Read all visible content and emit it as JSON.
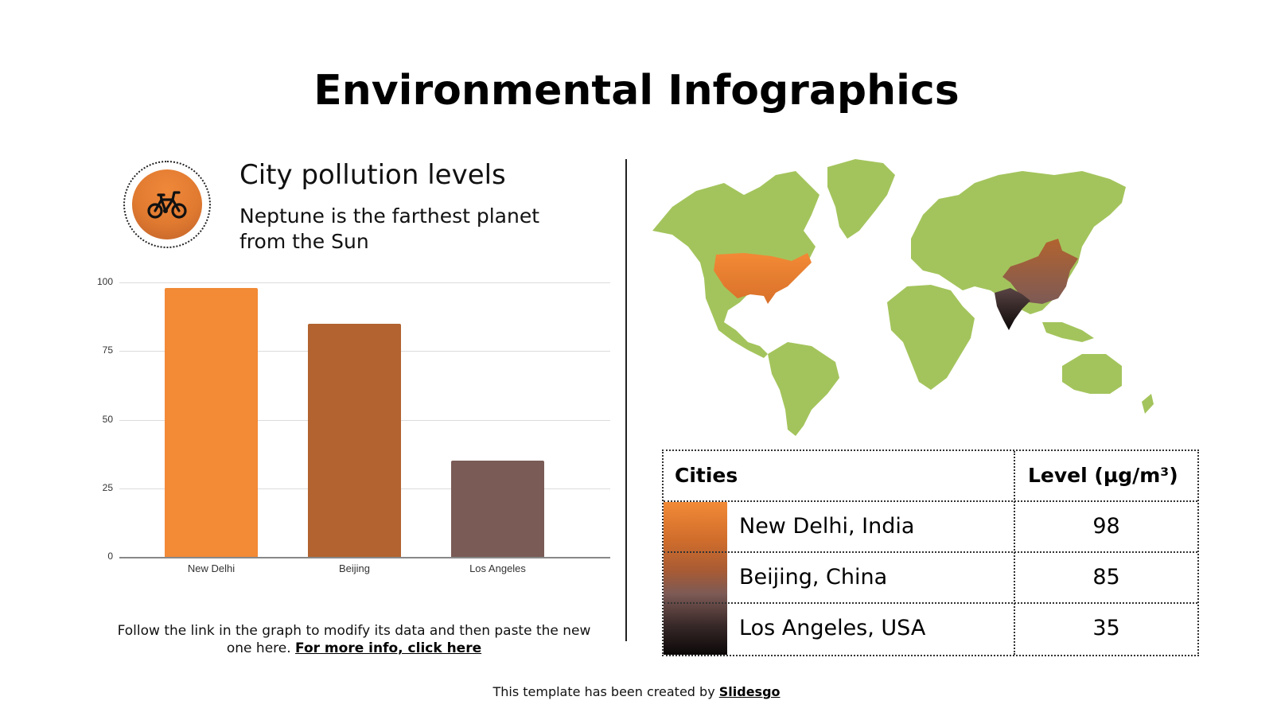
{
  "title": "Environmental Infographics",
  "section": {
    "icon": "bicycle-icon",
    "heading": "City pollution levels",
    "subheading": "Neptune is the farthest planet from the Sun"
  },
  "note": {
    "text": "Follow the link in the graph to modify its data and then paste the new one here.",
    "link_label": "For more info, click here"
  },
  "colors": {
    "new_delhi": "#f28a36",
    "beijing": "#b2632f",
    "los_angeles": "#7a5b56",
    "map_land": "#a3c45c",
    "gridline": "#dcdcdc"
  },
  "chart_data": {
    "type": "bar",
    "title": "",
    "categories": [
      "New Delhi",
      "Beijing",
      "Los Angeles"
    ],
    "values": [
      98,
      85,
      35
    ],
    "colors": [
      "#f28a36",
      "#b2632f",
      "#7a5b56"
    ],
    "xlabel": "",
    "ylabel": "",
    "ylim": [
      0,
      100
    ],
    "yticks": [
      0,
      25,
      50,
      75,
      100
    ],
    "grid": true,
    "legend": "none"
  },
  "table": {
    "headers": [
      "Cities",
      "Level (µg/m³)"
    ],
    "rows": [
      {
        "city": "New Delhi, India",
        "level": "98"
      },
      {
        "city": "Beijing, China",
        "level": "85"
      },
      {
        "city": "Los Angeles, USA",
        "level": "35"
      }
    ]
  },
  "map": {
    "highlighted": [
      {
        "country": "USA",
        "color": "#e8823a"
      },
      {
        "country": "China",
        "color": "#9a5838"
      },
      {
        "country": "India",
        "color": "#2a1c1c"
      }
    ]
  },
  "footer": {
    "text": "This template has been created by",
    "link_label": "Slidesgo"
  }
}
